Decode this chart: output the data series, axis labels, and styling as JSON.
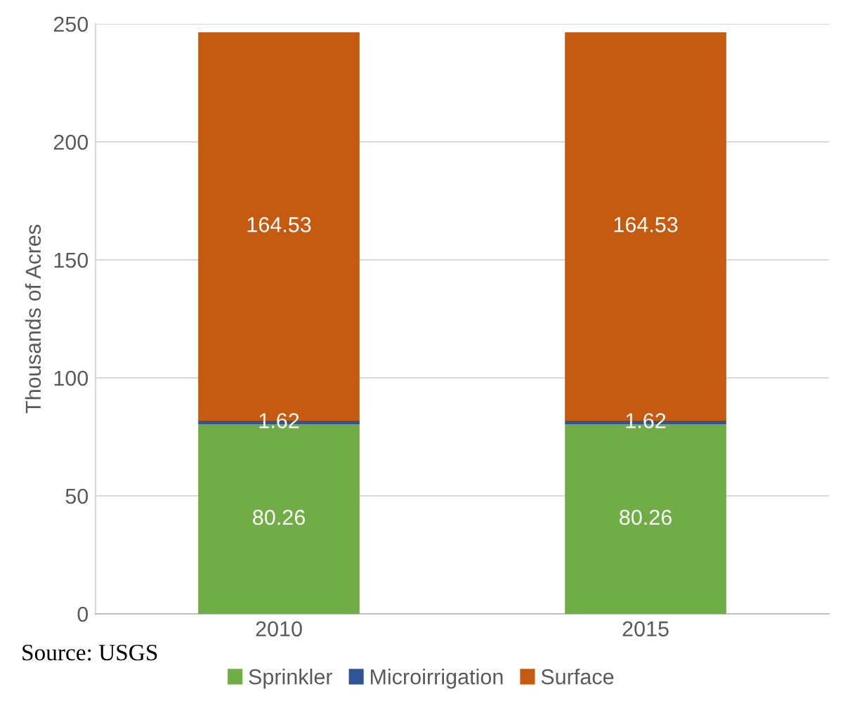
{
  "chart_data": {
    "type": "bar",
    "stacked": true,
    "ylabel": "Thousands of Acres",
    "categories": [
      "2010",
      "2015"
    ],
    "series": [
      {
        "name": "Sprinkler",
        "color": "#70ad47",
        "values": [
          80.26,
          80.26
        ]
      },
      {
        "name": "Microirrigation",
        "color": "#2f5597",
        "values": [
          1.62,
          1.62
        ]
      },
      {
        "name": "Surface",
        "color": "#c55a11",
        "values": [
          164.53,
          164.53
        ]
      }
    ],
    "ylim": [
      0,
      250
    ],
    "yticks": [
      0,
      50,
      100,
      150,
      200,
      250
    ],
    "grid": "y",
    "legend": "bottom",
    "data_labels": true,
    "annotations": [
      "Source: USGS"
    ]
  }
}
